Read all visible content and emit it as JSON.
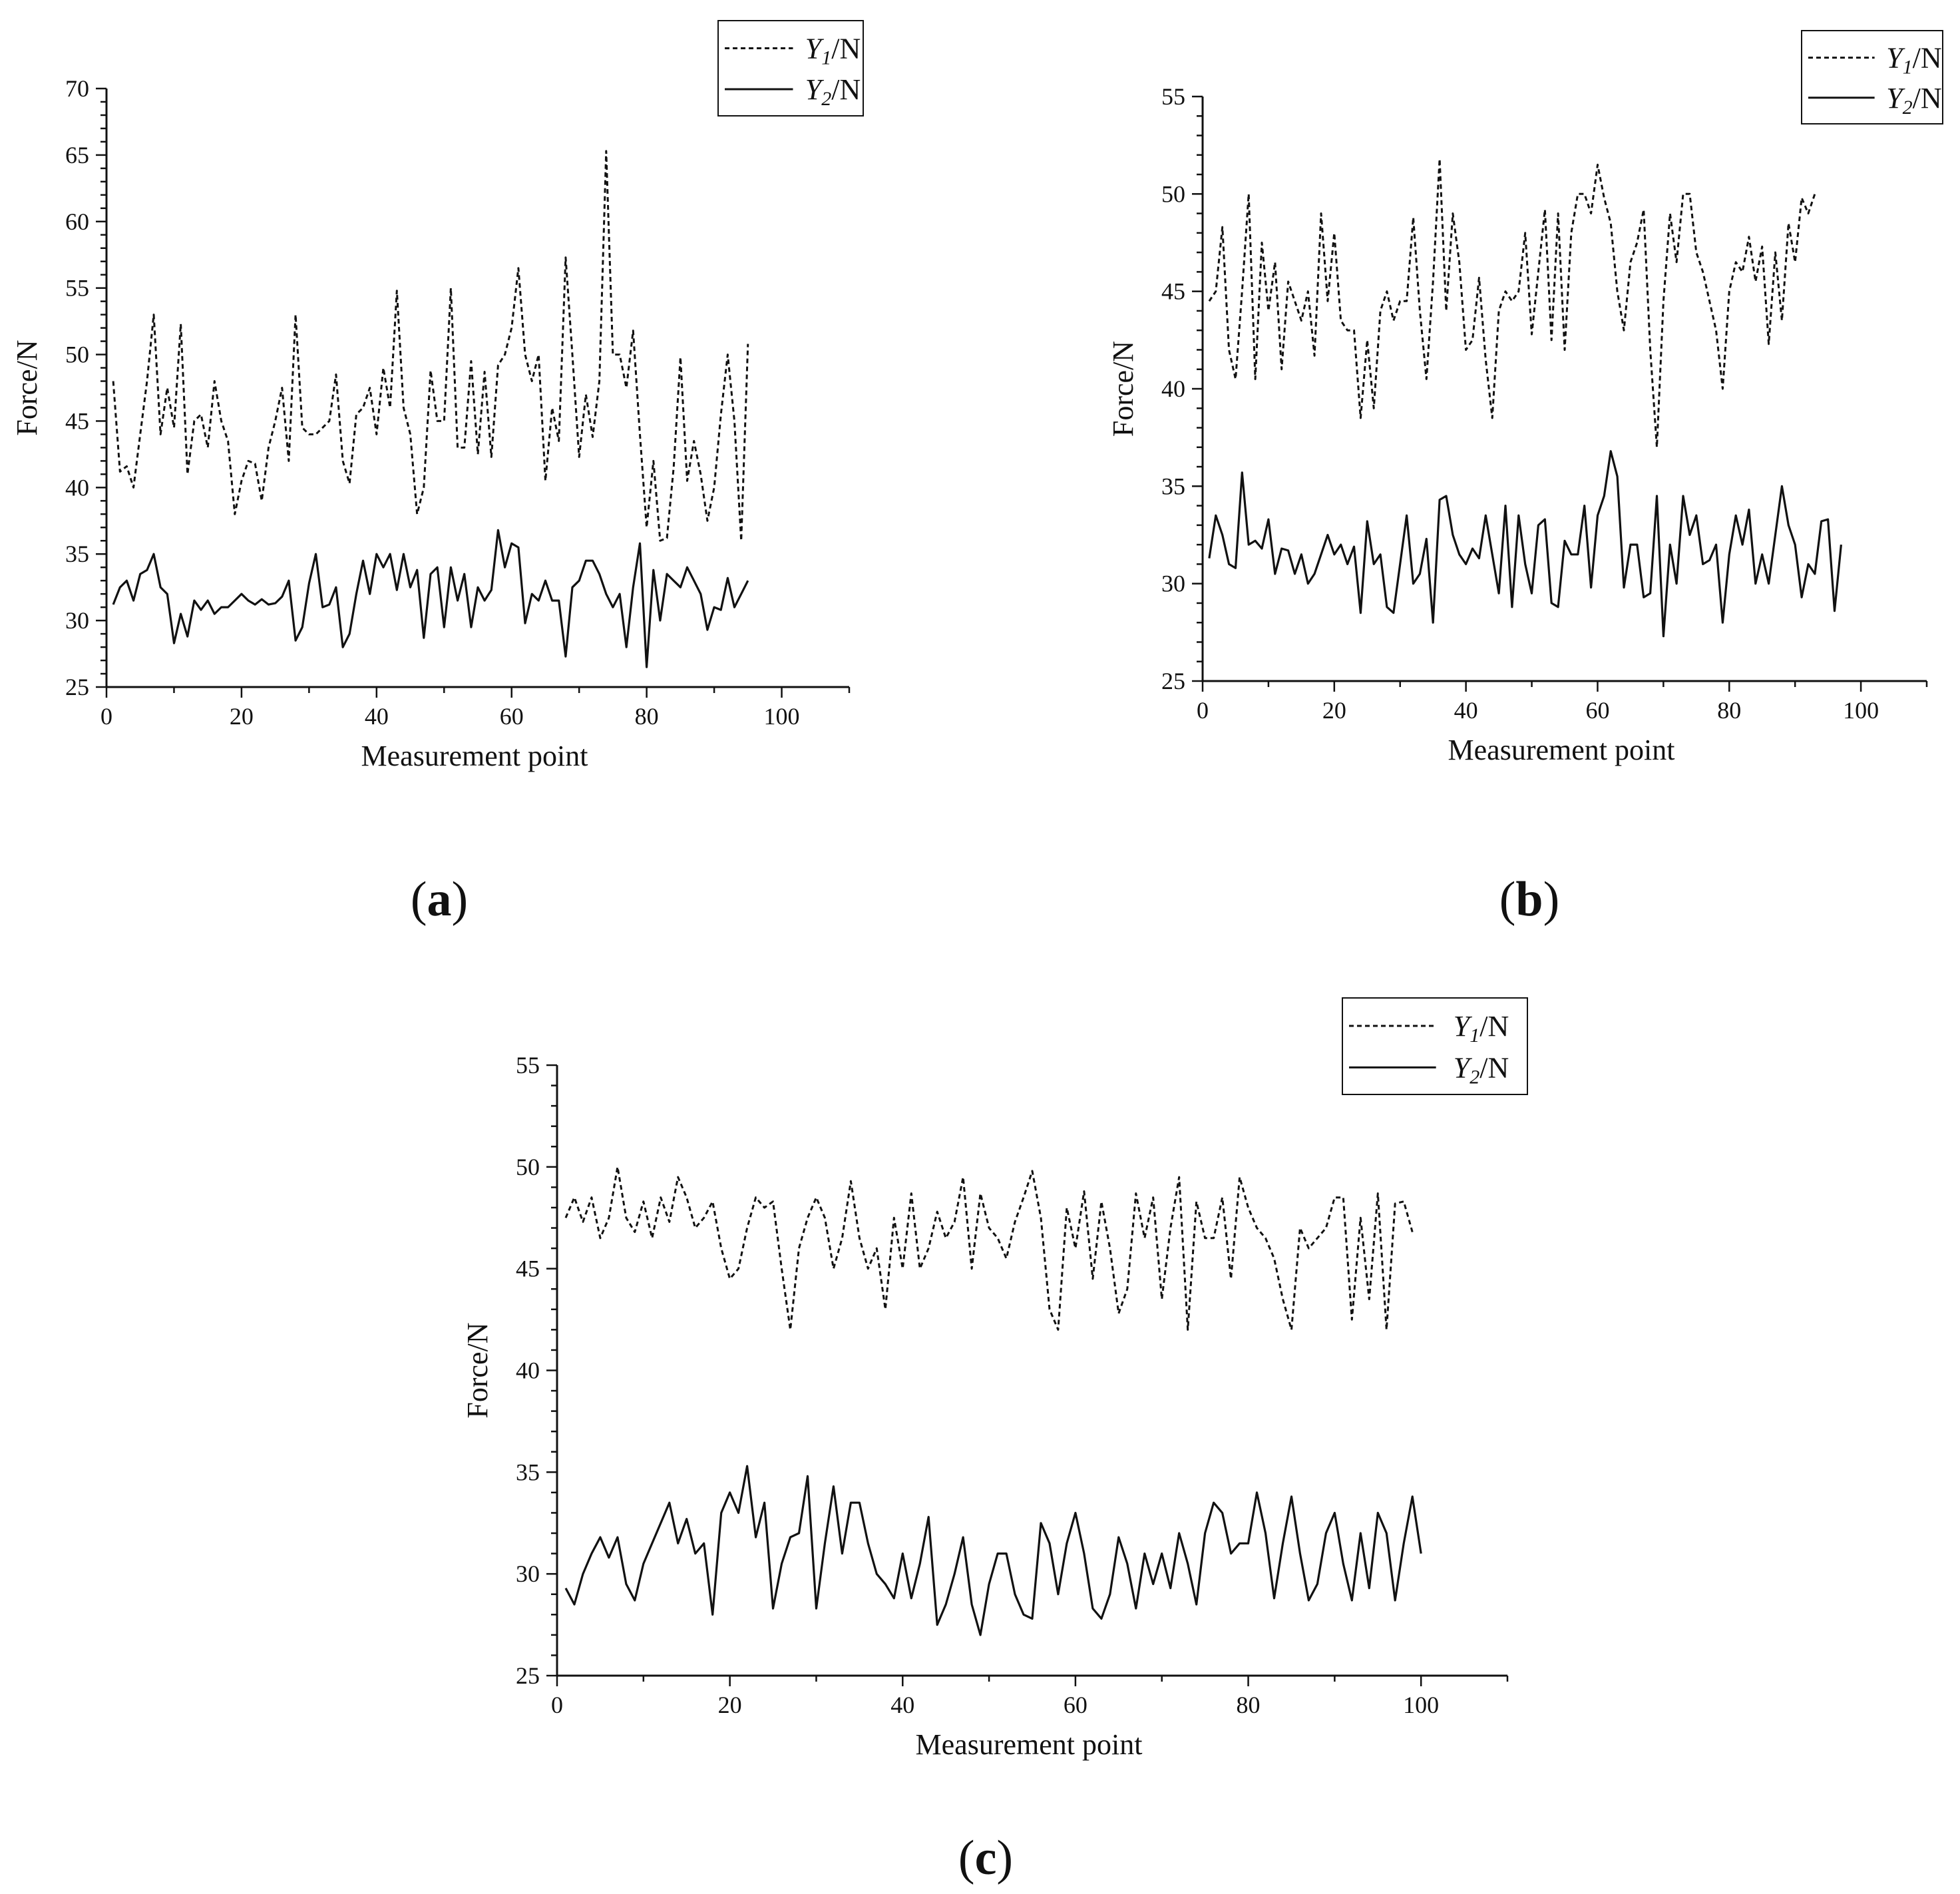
{
  "figure": {
    "panels": [
      "(a)",
      "(b)",
      "(c)"
    ]
  },
  "chart_data": [
    {
      "type": "line",
      "panel_label": "(a)",
      "xlabel": "Measurement point",
      "ylabel": "Force/N",
      "xlim": [
        0,
        110
      ],
      "ylim": [
        25,
        70
      ],
      "xticks": [
        0,
        20,
        40,
        60,
        80,
        100
      ],
      "yticks": [
        25,
        30,
        35,
        40,
        45,
        50,
        55,
        60,
        65,
        70
      ],
      "legend_position": "top-right",
      "legend": [
        {
          "name": "Y1/N",
          "sym": "Y",
          "sub": "1",
          "unit": "/N",
          "style": "dashed"
        },
        {
          "name": "Y2/N",
          "sym": "Y",
          "sub": "2",
          "unit": "/N",
          "style": "solid"
        }
      ],
      "x_start": 1,
      "series": [
        {
          "name": "Y1/N",
          "style": "dashed",
          "values": [
            48.0,
            41.2,
            41.6,
            40.0,
            44.0,
            48.0,
            53.0,
            44.0,
            47.5,
            44.5,
            52.3,
            41.0,
            45.0,
            45.5,
            43.0,
            48.0,
            45.0,
            43.5,
            38.0,
            40.5,
            42.0,
            41.8,
            39.0,
            43.0,
            45.0,
            47.5,
            42.0,
            53.0,
            44.5,
            44.0,
            44.0,
            44.5,
            45.0,
            48.5,
            42.0,
            40.3,
            45.5,
            46.0,
            47.5,
            44.0,
            49.0,
            46.0,
            54.8,
            46.0,
            44.0,
            38.0,
            40.0,
            48.8,
            45.0,
            45.0,
            55.0,
            43.0,
            43.0,
            49.5,
            42.5,
            48.7,
            42.3,
            49.2,
            50.0,
            52.0,
            56.5,
            50.0,
            48.0,
            50.0,
            40.5,
            46.0,
            43.5,
            57.3,
            50.0,
            42.3,
            47.0,
            43.8,
            48.0,
            65.3,
            50.0,
            50.0,
            47.5,
            51.8,
            44.0,
            37.0,
            42.0,
            36.0,
            36.2,
            41.5,
            49.8,
            40.5,
            43.5,
            41.0,
            37.5,
            40.0,
            45.5,
            50.0,
            45.0,
            36.0,
            50.8
          ]
        },
        {
          "name": "Y2/N",
          "style": "solid",
          "values": [
            31.2,
            32.5,
            33.0,
            31.5,
            33.5,
            33.8,
            35.0,
            32.5,
            32.0,
            28.3,
            30.5,
            28.8,
            31.5,
            30.8,
            31.5,
            30.5,
            31.0,
            31.0,
            31.5,
            32.0,
            31.5,
            31.2,
            31.6,
            31.2,
            31.3,
            31.8,
            33.0,
            28.5,
            29.5,
            32.8,
            35.0,
            31.0,
            31.2,
            32.5,
            28.0,
            29.0,
            32.0,
            34.5,
            32.0,
            35.0,
            34.0,
            35.0,
            32.3,
            35.0,
            32.5,
            33.8,
            28.7,
            33.5,
            34.0,
            29.5,
            34.0,
            31.5,
            33.5,
            29.5,
            32.5,
            31.5,
            32.3,
            36.8,
            34.0,
            35.8,
            35.5,
            29.8,
            32.0,
            31.5,
            33.0,
            31.5,
            31.5,
            27.3,
            32.5,
            33.0,
            34.5,
            34.5,
            33.5,
            32.0,
            31.0,
            32.0,
            28.0,
            32.5,
            35.8,
            26.5,
            33.8,
            30.0,
            33.5,
            33.0,
            32.5,
            34.0,
            33.0,
            32.0,
            29.3,
            31.0,
            30.8,
            33.2,
            31.0,
            32.0,
            33.0
          ]
        }
      ]
    },
    {
      "type": "line",
      "panel_label": "(b)",
      "xlabel": "Measurement point",
      "ylabel": "Force/N",
      "xlim": [
        0,
        110
      ],
      "ylim": [
        25,
        55
      ],
      "xticks": [
        0,
        20,
        40,
        60,
        80,
        100
      ],
      "yticks": [
        25,
        30,
        35,
        40,
        45,
        50,
        55
      ],
      "legend_position": "top-right",
      "legend": [
        {
          "name": "Y1/N",
          "sym": "Y",
          "sub": "1",
          "unit": "/N",
          "style": "dashed"
        },
        {
          "name": "Y2/N",
          "sym": "Y",
          "sub": "2",
          "unit": "/N",
          "style": "solid"
        }
      ],
      "x_start": 1,
      "series": [
        {
          "name": "Y1/N",
          "style": "dashed",
          "values": [
            44.5,
            45.0,
            48.3,
            42.0,
            40.5,
            45.0,
            50.0,
            40.5,
            47.5,
            44.0,
            46.5,
            41.0,
            45.5,
            44.5,
            43.5,
            45.0,
            41.7,
            49.0,
            44.5,
            48.0,
            43.5,
            43.0,
            43.0,
            38.5,
            42.5,
            39.0,
            44.0,
            45.0,
            43.5,
            44.5,
            44.5,
            48.8,
            44.0,
            40.5,
            45.5,
            51.8,
            44.0,
            49.0,
            46.5,
            42.0,
            42.5,
            45.7,
            41.5,
            38.5,
            44.0,
            45.0,
            44.5,
            45.0,
            48.0,
            42.8,
            46.0,
            49.2,
            42.5,
            49.0,
            42.0,
            48.0,
            50.0,
            50.0,
            49.0,
            51.5,
            49.8,
            48.5,
            45.0,
            43.0,
            46.5,
            47.5,
            49.2,
            42.0,
            37.0,
            44.5,
            49.0,
            46.5,
            50.0,
            50.0,
            47.0,
            46.0,
            44.5,
            43.0,
            40.0,
            45.0,
            46.5,
            46.0,
            47.8,
            45.5,
            47.3,
            42.3,
            47.0,
            43.5,
            48.5,
            46.5,
            49.8,
            49.0,
            50.0
          ]
        },
        {
          "name": "Y2/N",
          "style": "solid",
          "values": [
            31.3,
            33.5,
            32.5,
            31.0,
            30.8,
            35.7,
            32.0,
            32.2,
            31.8,
            33.3,
            30.5,
            31.8,
            31.7,
            30.5,
            31.5,
            30.0,
            30.5,
            31.5,
            32.5,
            31.5,
            32.0,
            31.0,
            31.9,
            28.5,
            33.2,
            31.0,
            31.5,
            28.8,
            28.5,
            31.0,
            33.5,
            30.0,
            30.5,
            32.3,
            28.0,
            34.3,
            34.5,
            32.5,
            31.5,
            31.0,
            31.8,
            31.3,
            33.5,
            31.5,
            29.5,
            34.0,
            28.8,
            33.5,
            31.0,
            29.5,
            33.0,
            33.3,
            29.0,
            28.8,
            32.2,
            31.5,
            31.5,
            34.0,
            29.8,
            33.5,
            34.5,
            36.8,
            35.5,
            29.8,
            32.0,
            32.0,
            29.3,
            29.5,
            34.5,
            27.3,
            32.0,
            30.0,
            34.5,
            32.5,
            33.5,
            31.0,
            31.2,
            32.0,
            28.0,
            31.5,
            33.5,
            32.0,
            33.8,
            30.0,
            31.5,
            30.0,
            32.5,
            35.0,
            33.0,
            32.0,
            29.3,
            31.0,
            30.5,
            33.2,
            33.3,
            28.6,
            32.0
          ]
        }
      ]
    },
    {
      "type": "line",
      "panel_label": "(c)",
      "xlabel": "Measurement point",
      "ylabel": "Force/N",
      "xlim": [
        0,
        110
      ],
      "ylim": [
        25,
        55
      ],
      "xticks": [
        0,
        20,
        40,
        60,
        80,
        100
      ],
      "yticks": [
        25,
        30,
        35,
        40,
        45,
        50,
        55
      ],
      "legend_position": "top-right",
      "legend": [
        {
          "name": "Y1/N",
          "sym": "Y",
          "sub": "1",
          "unit": "/N",
          "style": "dashed"
        },
        {
          "name": "Y2/N",
          "sym": "Y",
          "sub": "2",
          "unit": "/N",
          "style": "solid"
        }
      ],
      "x_start": 1,
      "series": [
        {
          "name": "Y1/N",
          "style": "dashed",
          "values": [
            47.5,
            48.5,
            47.3,
            48.5,
            46.5,
            47.5,
            50.0,
            47.5,
            46.8,
            48.3,
            46.5,
            48.5,
            47.3,
            49.5,
            48.5,
            47.0,
            47.5,
            48.3,
            46.0,
            44.5,
            45.0,
            47.0,
            48.5,
            48.0,
            48.3,
            45.0,
            42.0,
            46.0,
            47.5,
            48.5,
            47.5,
            45.0,
            46.5,
            49.3,
            46.5,
            45.0,
            46.0,
            43.0,
            47.5,
            45.0,
            48.7,
            45.0,
            46.0,
            47.8,
            46.5,
            47.3,
            49.5,
            45.0,
            48.7,
            47.0,
            46.5,
            45.5,
            47.3,
            48.5,
            49.8,
            47.5,
            43.0,
            42.0,
            48.0,
            46.0,
            48.8,
            44.5,
            48.3,
            46.0,
            42.8,
            44.0,
            48.7,
            46.5,
            48.5,
            43.5,
            47.0,
            49.5,
            42.0,
            48.3,
            46.5,
            46.5,
            48.5,
            44.5,
            49.5,
            48.0,
            47.0,
            46.5,
            45.5,
            43.5,
            42.0,
            47.0,
            46.0,
            46.5,
            47.0,
            48.5,
            48.5,
            42.5,
            47.5,
            43.5,
            48.7,
            42.0,
            48.2,
            48.3,
            46.8
          ]
        },
        {
          "name": "Y2/N",
          "style": "solid",
          "values": [
            29.3,
            28.5,
            30.0,
            31.0,
            31.8,
            30.8,
            31.8,
            29.5,
            28.7,
            30.5,
            31.5,
            32.5,
            33.5,
            31.5,
            32.7,
            31.0,
            31.5,
            28.0,
            33.0,
            34.0,
            33.0,
            35.3,
            31.8,
            33.5,
            28.3,
            30.5,
            31.8,
            32.0,
            34.8,
            28.3,
            31.5,
            34.3,
            31.0,
            33.5,
            33.5,
            31.5,
            30.0,
            29.5,
            28.8,
            31.0,
            28.8,
            30.5,
            32.8,
            27.5,
            28.5,
            30.0,
            31.8,
            28.5,
            27.0,
            29.5,
            31.0,
            31.0,
            29.0,
            28.0,
            27.8,
            32.5,
            31.5,
            29.0,
            31.5,
            33.0,
            31.0,
            28.3,
            27.8,
            29.0,
            31.8,
            30.5,
            28.3,
            31.0,
            29.5,
            31.0,
            29.3,
            32.0,
            30.5,
            28.5,
            32.0,
            33.5,
            33.0,
            31.0,
            31.5,
            31.5,
            34.0,
            32.0,
            28.8,
            31.5,
            33.8,
            31.0,
            28.7,
            29.5,
            32.0,
            33.0,
            30.5,
            28.7,
            32.0,
            29.3,
            33.0,
            32.0,
            28.7,
            31.5,
            33.8,
            31.0
          ]
        }
      ]
    }
  ]
}
